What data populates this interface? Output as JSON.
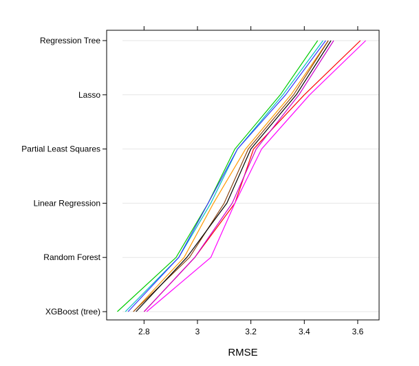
{
  "chart_data": {
    "type": "line",
    "xlabel": "RMSE",
    "ylabel": "",
    "title": "",
    "xlim": [
      2.66,
      3.68
    ],
    "xticks": [
      2.8,
      3.0,
      3.2,
      3.4,
      3.6
    ],
    "xtick_labels": [
      "2.8",
      "3",
      "3.2",
      "3.4",
      "3.6"
    ],
    "categories": [
      "XGBoost (tree)",
      "Random Forest",
      "Linear Regression",
      "Partial Least Squares",
      "Lasso",
      "Regression Tree"
    ],
    "grid": true,
    "series": [
      {
        "color": "#00cc00",
        "values": [
          2.7,
          2.92,
          3.04,
          3.14,
          3.31,
          3.45
        ]
      },
      {
        "color": "#00c0c0",
        "values": [
          2.73,
          2.93,
          3.05,
          3.15,
          3.32,
          3.47
        ]
      },
      {
        "color": "#3333ff",
        "values": [
          2.74,
          2.93,
          3.04,
          3.15,
          3.33,
          3.48
        ]
      },
      {
        "color": "#ff9900",
        "values": [
          2.76,
          2.95,
          3.06,
          3.18,
          3.35,
          3.49
        ]
      },
      {
        "color": "#8b4513",
        "values": [
          2.76,
          2.97,
          3.1,
          3.19,
          3.36,
          3.49
        ]
      },
      {
        "color": "#000000",
        "values": [
          2.77,
          2.96,
          3.11,
          3.2,
          3.37,
          3.5
        ]
      },
      {
        "color": "#ff0000",
        "values": [
          2.8,
          2.99,
          3.14,
          3.21,
          3.4,
          3.61
        ]
      },
      {
        "color": "#cc00cc",
        "values": [
          2.8,
          2.99,
          3.13,
          3.22,
          3.38,
          3.51
        ]
      },
      {
        "color": "#ff00ff",
        "values": [
          2.81,
          3.05,
          3.14,
          3.24,
          3.42,
          3.63
        ]
      }
    ]
  }
}
